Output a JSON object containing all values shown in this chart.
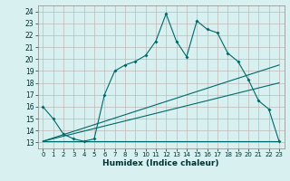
{
  "xlabel": "Humidex (Indice chaleur)",
  "bg_color": "#d8f0f0",
  "grid_color": "#c0b8b8",
  "line_color": "#006868",
  "xlim": [
    -0.5,
    23.5
  ],
  "ylim": [
    12.5,
    24.5
  ],
  "xticks": [
    0,
    1,
    2,
    3,
    4,
    5,
    6,
    7,
    8,
    9,
    10,
    11,
    12,
    13,
    14,
    15,
    16,
    17,
    18,
    19,
    20,
    21,
    22,
    23
  ],
  "yticks": [
    13,
    14,
    15,
    16,
    17,
    18,
    19,
    20,
    21,
    22,
    23,
    24
  ],
  "line1_x": [
    0,
    1,
    2,
    3,
    4,
    5,
    6,
    7,
    8,
    9,
    10,
    11,
    12,
    13,
    14,
    15,
    16,
    17,
    18,
    19,
    20,
    21,
    22,
    23
  ],
  "line1_y": [
    16,
    15,
    13.7,
    13.3,
    13.1,
    13.3,
    17,
    19,
    19.5,
    19.8,
    20.3,
    21.5,
    23.8,
    21.5,
    20.2,
    23.2,
    22.5,
    22.2,
    20.5,
    19.8,
    18.3,
    16.5,
    15.8,
    13.1
  ],
  "line2_x": [
    0,
    1,
    2,
    3,
    4,
    5,
    6,
    7,
    8,
    9,
    10,
    11,
    12,
    13,
    14,
    15,
    16,
    17,
    18,
    19,
    20,
    21,
    22,
    23
  ],
  "line2_y": [
    13.1,
    13.1,
    13.1,
    13.1,
    13.1,
    13.1,
    13.1,
    13.1,
    13.1,
    13.1,
    13.1,
    13.1,
    13.1,
    13.1,
    13.1,
    13.1,
    13.1,
    13.1,
    13.1,
    13.1,
    13.1,
    13.1,
    13.1,
    13.1
  ],
  "line3_x": [
    0,
    23
  ],
  "line3_y": [
    13.1,
    19.5
  ],
  "line4_x": [
    0,
    23
  ],
  "line4_y": [
    13.1,
    18.0
  ]
}
